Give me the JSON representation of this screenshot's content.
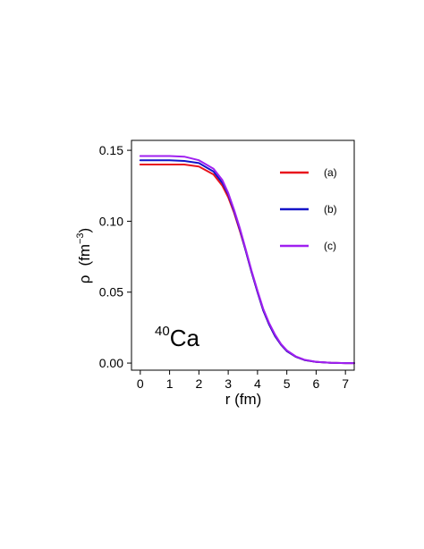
{
  "chart_data": {
    "type": "line",
    "title": "",
    "xlabel": "r  (fm)",
    "ylabel": {
      "symbol": "ρ",
      "unit_open": "(fm",
      "unit_exp": "−3",
      "unit_close": ")"
    },
    "xlim": [
      -0.3,
      7.3
    ],
    "ylim": [
      -0.005,
      0.157
    ],
    "xticks": [
      0,
      1,
      2,
      3,
      4,
      5,
      6,
      7
    ],
    "xtick_labels": [
      "0",
      "1",
      "2",
      "3",
      "4",
      "5",
      "6",
      "7"
    ],
    "yticks": [
      0.0,
      0.05,
      0.1,
      0.15
    ],
    "ytick_labels": [
      "0.00",
      "0.05",
      "0.10",
      "0.15"
    ],
    "grid": false,
    "legend_position": "top-right",
    "annotation": {
      "superscript": "40",
      "text": "Ca"
    },
    "series": [
      {
        "name": "(a)",
        "color": "#e8141c",
        "x": [
          0,
          0.5,
          1,
          1.5,
          2,
          2.5,
          2.8,
          3,
          3.2,
          3.4,
          3.6,
          3.8,
          4,
          4.2,
          4.4,
          4.6,
          4.8,
          5,
          5.3,
          5.6,
          6,
          6.5,
          7,
          7.3
        ],
        "y": [
          0.14,
          0.14,
          0.14,
          0.14,
          0.1385,
          0.133,
          0.125,
          0.117,
          0.106,
          0.093,
          0.079,
          0.064,
          0.05,
          0.037,
          0.027,
          0.019,
          0.013,
          0.0085,
          0.0045,
          0.0022,
          0.0008,
          0.0002,
          0.0,
          0.0
        ]
      },
      {
        "name": "(b)",
        "color": "#1414c8",
        "x": [
          0,
          0.5,
          1,
          1.5,
          2,
          2.5,
          2.8,
          3,
          3.2,
          3.4,
          3.6,
          3.8,
          4,
          4.2,
          4.4,
          4.6,
          4.8,
          5,
          5.3,
          5.6,
          6,
          6.5,
          7,
          7.3
        ],
        "y": [
          0.143,
          0.143,
          0.143,
          0.1425,
          0.141,
          0.135,
          0.127,
          0.119,
          0.107,
          0.094,
          0.079,
          0.064,
          0.05,
          0.037,
          0.027,
          0.019,
          0.013,
          0.0085,
          0.0045,
          0.0022,
          0.0008,
          0.0002,
          0.0,
          0.0
        ]
      },
      {
        "name": "(c)",
        "color": "#a020f0",
        "x": [
          0,
          0.5,
          1,
          1.5,
          2,
          2.5,
          2.8,
          3,
          3.2,
          3.4,
          3.6,
          3.8,
          4,
          4.2,
          4.4,
          4.6,
          4.8,
          5,
          5.3,
          5.6,
          6,
          6.5,
          7,
          7.3
        ],
        "y": [
          0.146,
          0.146,
          0.146,
          0.1455,
          0.143,
          0.137,
          0.129,
          0.12,
          0.108,
          0.095,
          0.08,
          0.065,
          0.051,
          0.038,
          0.028,
          0.02,
          0.0135,
          0.009,
          0.0048,
          0.0024,
          0.0009,
          0.0002,
          0.0,
          0.0
        ]
      }
    ]
  }
}
